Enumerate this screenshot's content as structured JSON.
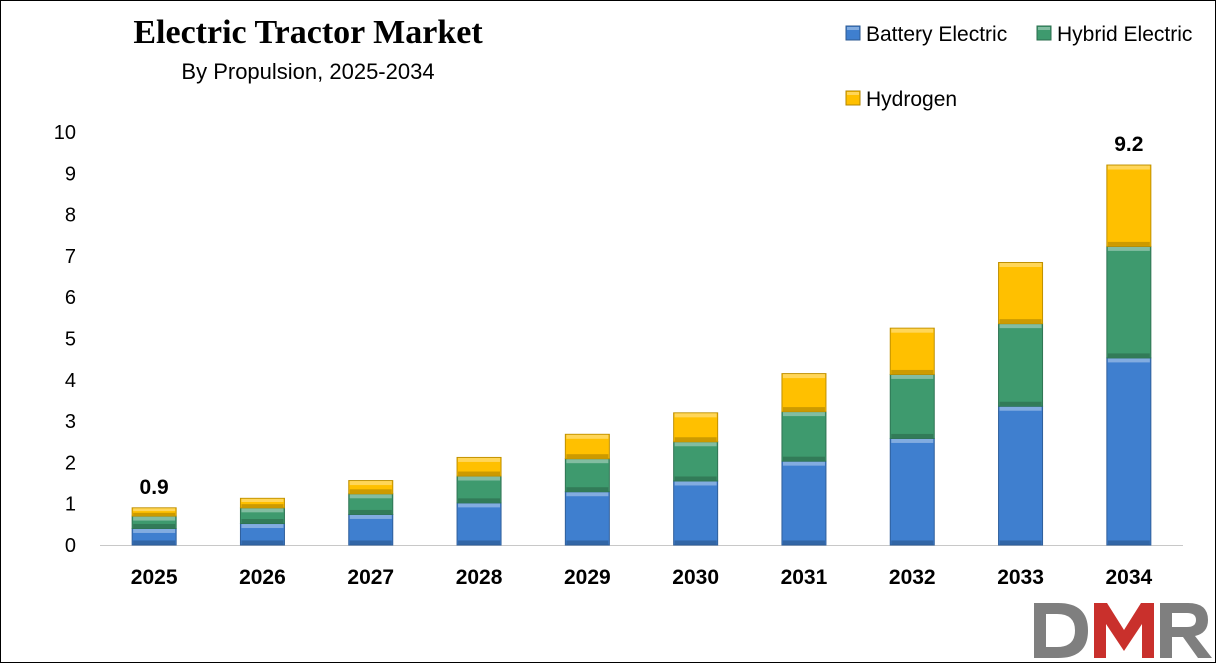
{
  "chart_data": {
    "type": "bar",
    "stacked": true,
    "title": "Electric Tractor Market",
    "subtitle": "By Propulsion, 2025-2034",
    "categories": [
      "2025",
      "2026",
      "2027",
      "2028",
      "2029",
      "2030",
      "2031",
      "2032",
      "2033",
      "2034"
    ],
    "series": [
      {
        "name": "Battery Electric",
        "color": "#3f7fcf",
        "values": [
          0.4,
          0.52,
          0.74,
          1.02,
          1.29,
          1.55,
          2.03,
          2.58,
          3.36,
          4.53
        ]
      },
      {
        "name": "Hybrid Electric",
        "color": "#3e9a6e",
        "values": [
          0.3,
          0.38,
          0.5,
          0.65,
          0.8,
          0.95,
          1.2,
          1.55,
          2.0,
          2.7
        ]
      },
      {
        "name": "Hydrogen",
        "color": "#ffc000",
        "values": [
          0.2,
          0.23,
          0.32,
          0.45,
          0.59,
          0.7,
          0.92,
          1.12,
          1.48,
          1.97
        ]
      }
    ],
    "totals": [
      0.9,
      1.13,
      1.56,
      2.12,
      2.68,
      3.2,
      4.15,
      5.25,
      6.84,
      9.2
    ],
    "data_labels": [
      {
        "category": "2025",
        "text": "0.9"
      },
      {
        "category": "2034",
        "text": "9.2"
      }
    ],
    "ylim": [
      0,
      10
    ],
    "yticks": [
      "0",
      "1",
      "2",
      "3",
      "4",
      "5",
      "6",
      "7",
      "8",
      "9",
      "10"
    ],
    "xlabel": "",
    "ylabel": "",
    "grid": false,
    "legend_position": "top-right"
  },
  "logo": {
    "text": "DMR"
  }
}
